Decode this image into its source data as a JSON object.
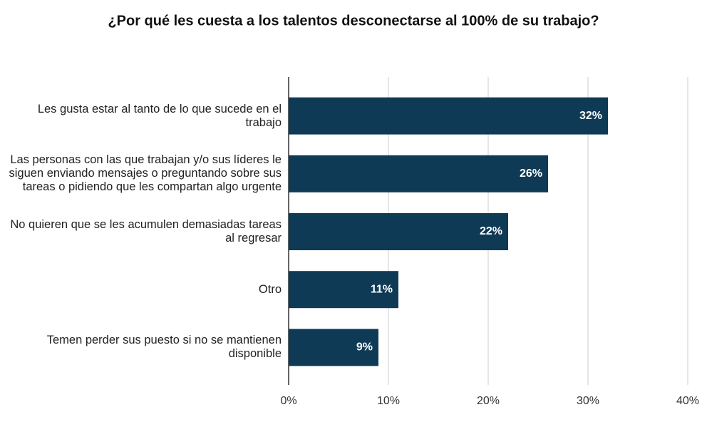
{
  "chart_data": {
    "type": "bar",
    "orientation": "horizontal",
    "title": "¿Por qué les cuesta a los talentos desconectarse al 100% de su trabajo?",
    "categories": [
      "Les gusta estar al tanto de lo que sucede en el trabajo",
      "Las personas con las que trabajan y/o sus líderes le siguen enviando mensajes o preguntando sobre sus tareas o pidiendo que les compartan algo urgente",
      "No quieren que se les acumulen demasiadas tareas al regresar",
      "Otro",
      "Temen perder sus puesto si no se mantienen disponible"
    ],
    "values": [
      32,
      26,
      22,
      11,
      9
    ],
    "value_labels": [
      "32%",
      "26%",
      "22%",
      "11%",
      "9%"
    ],
    "color": "#0f3a55",
    "xlim": [
      0,
      40
    ],
    "xticks": [
      {
        "value": 0,
        "label": "0%"
      },
      {
        "value": 10,
        "label": "10%"
      },
      {
        "value": 20,
        "label": "20%"
      },
      {
        "value": 30,
        "label": "30%"
      },
      {
        "value": 40,
        "label": "40%"
      }
    ],
    "grid": true
  }
}
